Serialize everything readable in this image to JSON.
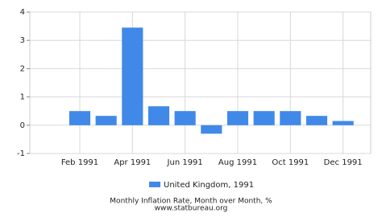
{
  "chart_data": {
    "type": "bar",
    "categories": [
      null,
      "Feb 1991",
      null,
      "Apr 1991",
      null,
      "Jun 1991",
      null,
      "Aug 1991",
      null,
      "Oct 1991",
      null,
      "Dec 1991"
    ],
    "series": [
      {
        "name": "United Kingdom, 1991",
        "color": "#4189e8",
        "values": [
          0,
          0.5,
          0.33,
          3.45,
          0.67,
          0.5,
          -0.3,
          0.5,
          0.5,
          0.5,
          0.33,
          0.15
        ]
      }
    ],
    "ylim": [
      -1,
      4
    ],
    "yticks": [
      -1,
      0,
      1,
      2,
      3,
      4
    ],
    "grid": true,
    "xlabel": "Monthly Inflation Rate, Month over Month, %",
    "source": "www.statbureau.org"
  }
}
